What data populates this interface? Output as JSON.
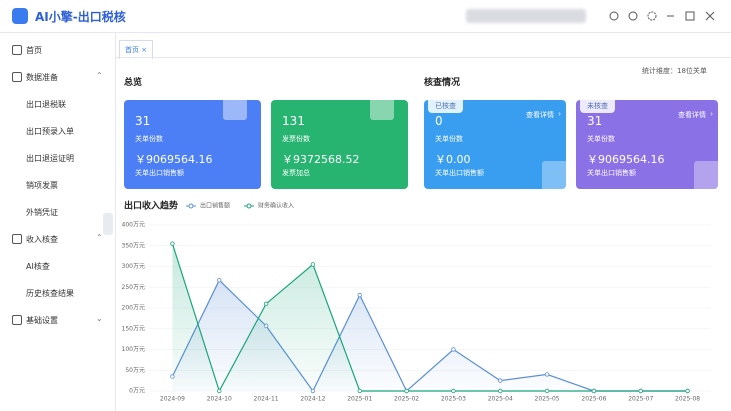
{
  "app": {
    "title": "AI小擎-出口税核"
  },
  "sidebar": [
    {
      "label": "首页"
    },
    {
      "label": "数据准备",
      "items": [
        "出口退税联",
        "出口预录入单",
        "出口退运证明",
        "销项发票",
        "外销凭证"
      ]
    },
    {
      "label": "收入核查",
      "items": [
        "AI核查",
        "历史核查结果"
      ]
    },
    {
      "label": "基础设置"
    }
  ],
  "tab": "首页",
  "dimension": "统计维度：18位关单",
  "overview": {
    "title": "总览",
    "cards": [
      {
        "count": "31",
        "count_label": "关单份数",
        "amount": "￥9069564.16",
        "amount_label": "关单出口销售额"
      },
      {
        "count": "131",
        "count_label": "发票份数",
        "amount": "￥9372568.52",
        "amount_label": "发票加总"
      }
    ]
  },
  "check": {
    "title": "核查情况",
    "cards": [
      {
        "badge": "已核查",
        "link": "查看详情",
        "count": "0",
        "count_label": "关单份数",
        "amount": "￥0.00",
        "amount_label": "关单出口销售额"
      },
      {
        "badge": "未核查",
        "link": "查看详情",
        "count": "31",
        "count_label": "关单份数",
        "amount": "￥9069564.16",
        "amount_label": "关单出口销售额"
      }
    ]
  },
  "chart_data": {
    "type": "line",
    "title": "出口收入趋势",
    "categories": [
      "2024-09",
      "2024-10",
      "2024-11",
      "2024-12",
      "2025-01",
      "2025-02",
      "2025-03",
      "2025-04",
      "2025-05",
      "2025-06",
      "2025-07",
      "2025-08"
    ],
    "series": [
      {
        "name": "出口销售额",
        "color": "#5b8fd6",
        "values": [
          35,
          267,
          157,
          0,
          231,
          0,
          100,
          25,
          40,
          0,
          0,
          0
        ]
      },
      {
        "name": "财务确认收入",
        "color": "#1aa57a",
        "values": [
          355,
          0,
          210,
          305,
          0,
          0,
          0,
          0,
          0,
          0,
          0,
          0
        ]
      }
    ],
    "ylim": [
      0,
      400
    ],
    "yticks": [
      {
        "value": 0,
        "label": "0万元"
      },
      {
        "value": 50,
        "label": "50万元"
      },
      {
        "value": 100,
        "label": "100万元"
      },
      {
        "value": 150,
        "label": "150万元"
      },
      {
        "value": 200,
        "label": "200万元"
      },
      {
        "value": 250,
        "label": "250万元"
      },
      {
        "value": 300,
        "label": "300万元"
      },
      {
        "value": 350,
        "label": "350万元"
      },
      {
        "value": 400,
        "label": "400万元"
      }
    ],
    "grid": true
  }
}
